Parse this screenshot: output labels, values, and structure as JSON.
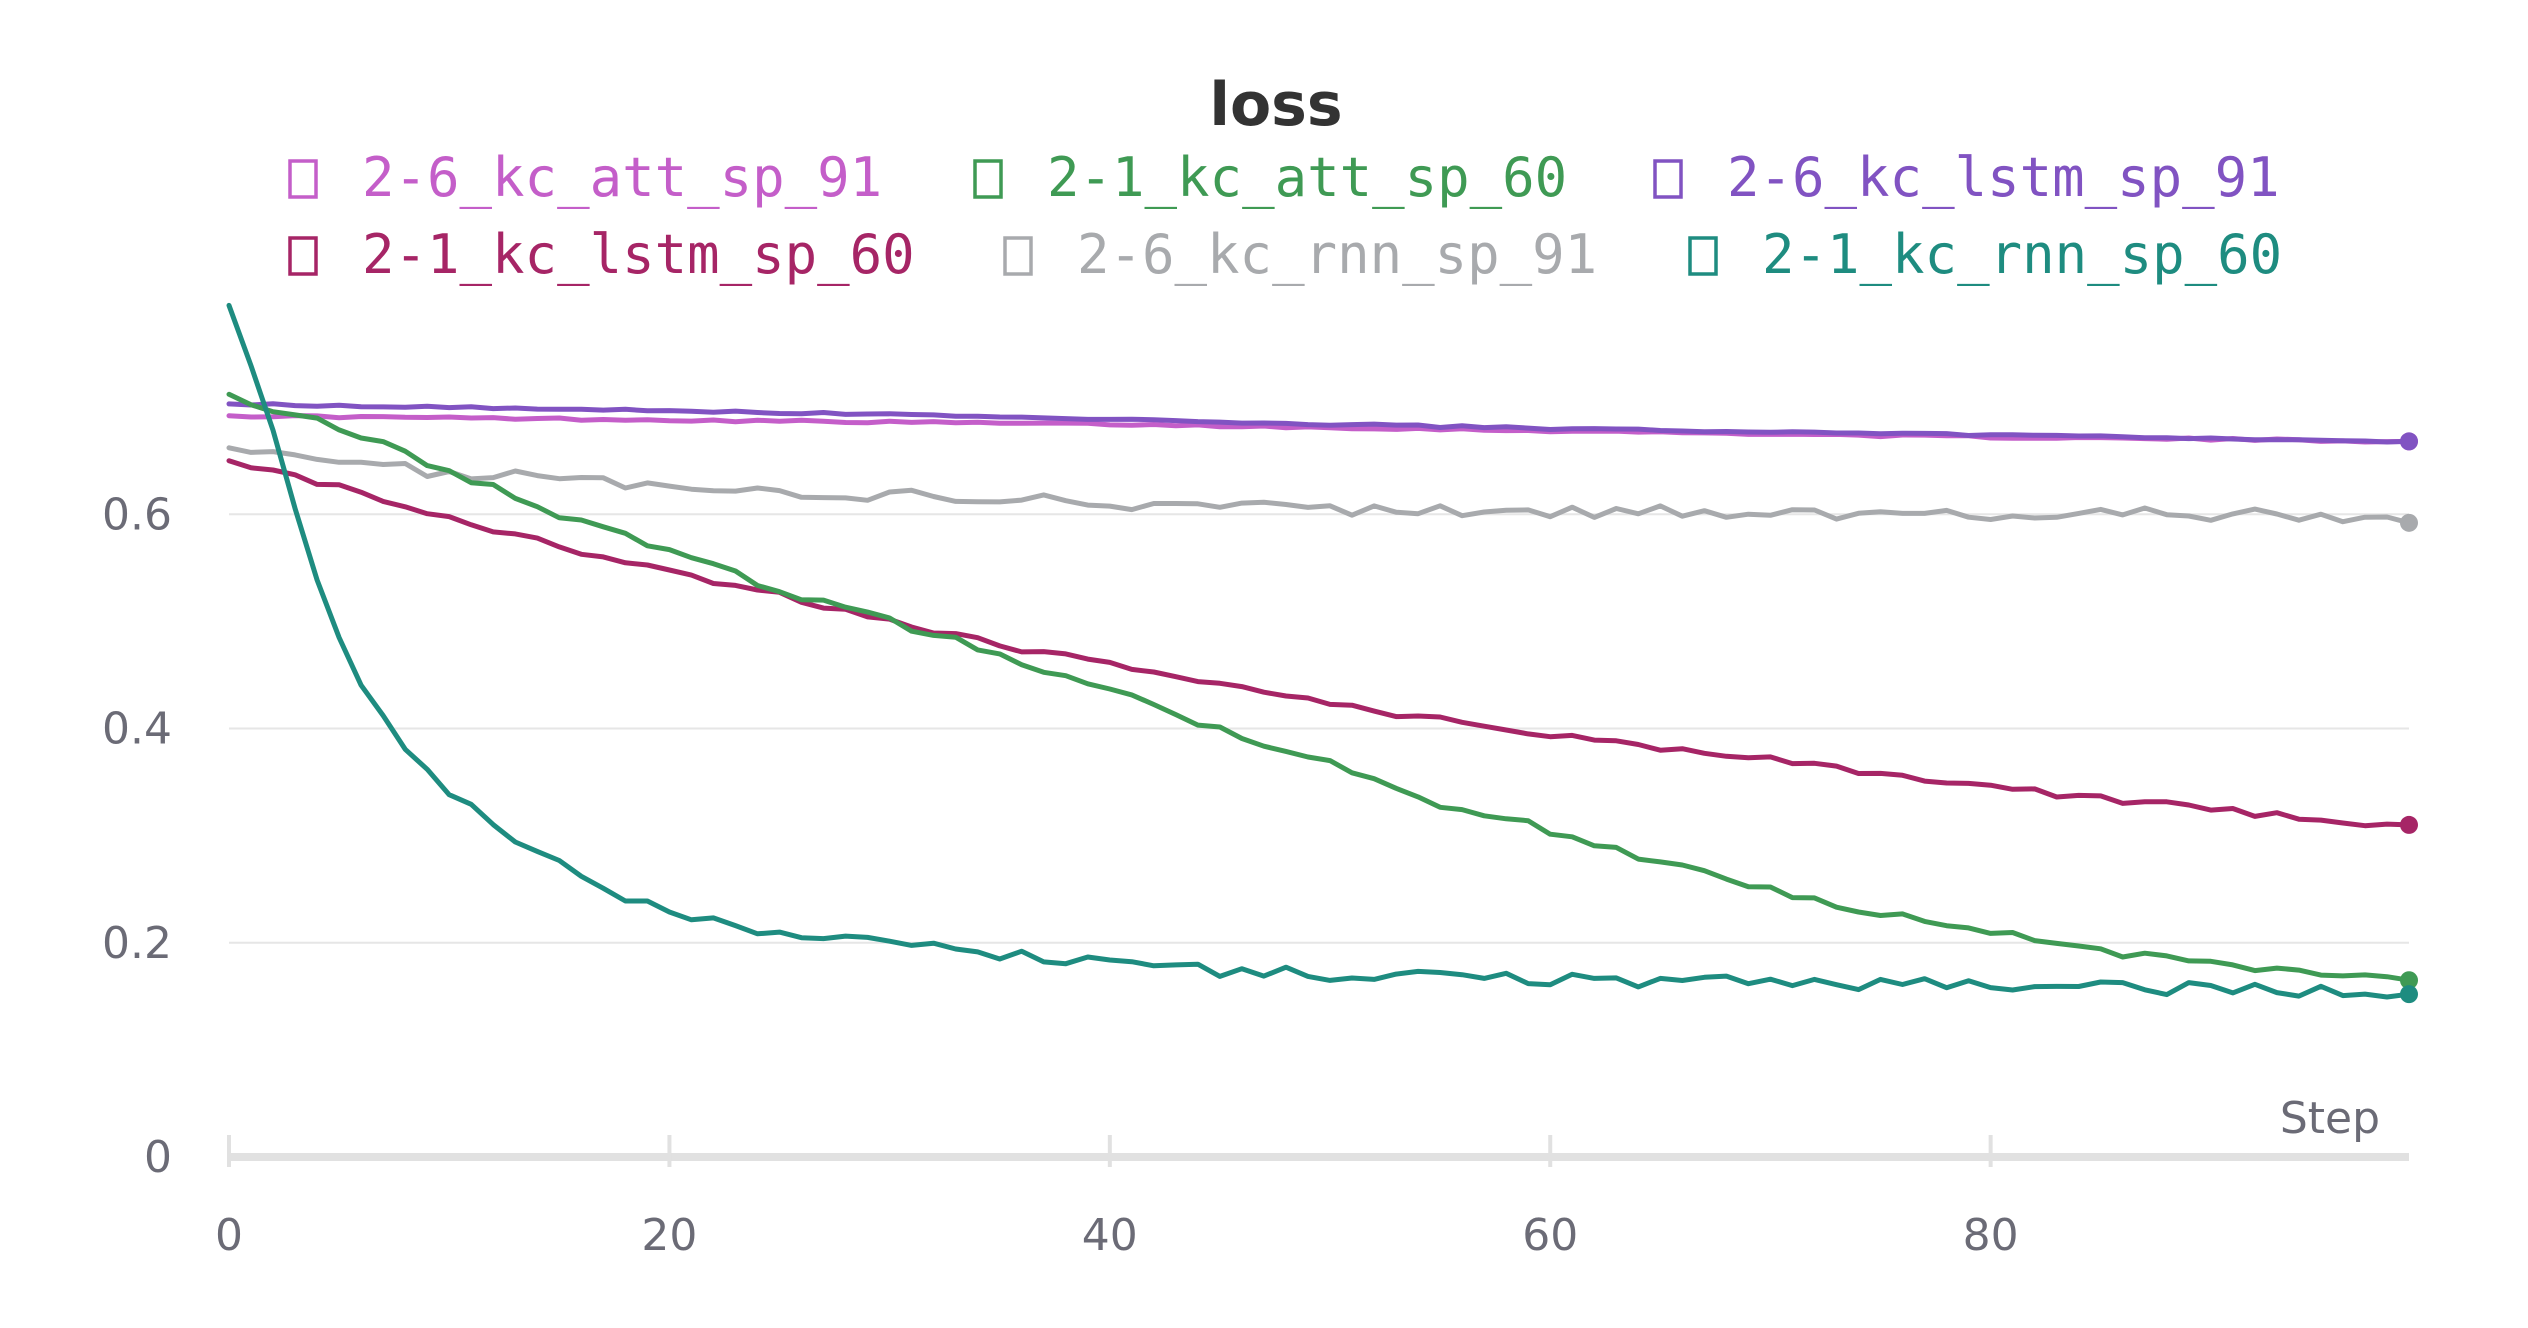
{
  "chart_data": {
    "type": "line",
    "title": "loss",
    "xlabel": "Step",
    "ylabel": "",
    "xlim": [
      0,
      99
    ],
    "ylim": [
      0,
      0.8
    ],
    "x_ticks": [
      0,
      20,
      40,
      60,
      80
    ],
    "y_ticks": [
      0,
      0.2,
      0.4,
      0.6
    ],
    "x_tick_labels": [
      "0",
      "20",
      "40",
      "60",
      "80"
    ],
    "y_tick_labels": [
      "0",
      "0.2",
      "0.4",
      "0.6"
    ],
    "grid": "horizontal",
    "legend_position": "top",
    "legend_marker": "□",
    "series": [
      {
        "name": "2-6_kc_att_sp_91",
        "color": "#c45ec9",
        "keypoints": [
          [
            0,
            0.692
          ],
          [
            10,
            0.69
          ],
          [
            20,
            0.688
          ],
          [
            30,
            0.686
          ],
          [
            40,
            0.684
          ],
          [
            50,
            0.681
          ],
          [
            60,
            0.678
          ],
          [
            70,
            0.675
          ],
          [
            80,
            0.672
          ],
          [
            90,
            0.67
          ],
          [
            99,
            0.668
          ]
        ],
        "noise": 0.001
      },
      {
        "name": "2-1_kc_att_sp_60",
        "color": "#3f9a54",
        "keypoints": [
          [
            0,
            0.712
          ],
          [
            5,
            0.68
          ],
          [
            10,
            0.64
          ],
          [
            15,
            0.6
          ],
          [
            20,
            0.565
          ],
          [
            25,
            0.53
          ],
          [
            30,
            0.5
          ],
          [
            35,
            0.47
          ],
          [
            40,
            0.435
          ],
          [
            45,
            0.4
          ],
          [
            50,
            0.368
          ],
          [
            55,
            0.33
          ],
          [
            60,
            0.305
          ],
          [
            65,
            0.275
          ],
          [
            70,
            0.25
          ],
          [
            75,
            0.228
          ],
          [
            80,
            0.21
          ],
          [
            85,
            0.192
          ],
          [
            90,
            0.18
          ],
          [
            95,
            0.172
          ],
          [
            99,
            0.165
          ]
        ],
        "noise": 0.004
      },
      {
        "name": "2-6_kc_lstm_sp_91",
        "color": "#8153c2",
        "keypoints": [
          [
            0,
            0.703
          ],
          [
            10,
            0.7
          ],
          [
            20,
            0.697
          ],
          [
            30,
            0.693
          ],
          [
            40,
            0.689
          ],
          [
            50,
            0.684
          ],
          [
            60,
            0.68
          ],
          [
            70,
            0.677
          ],
          [
            80,
            0.674
          ],
          [
            90,
            0.671
          ],
          [
            99,
            0.668
          ]
        ],
        "noise": 0.001
      },
      {
        "name": "2-1_kc_lstm_sp_60",
        "color": "#a62566",
        "keypoints": [
          [
            0,
            0.65
          ],
          [
            5,
            0.625
          ],
          [
            10,
            0.595
          ],
          [
            15,
            0.57
          ],
          [
            20,
            0.545
          ],
          [
            25,
            0.525
          ],
          [
            30,
            0.5
          ],
          [
            35,
            0.478
          ],
          [
            40,
            0.46
          ],
          [
            45,
            0.44
          ],
          [
            50,
            0.423
          ],
          [
            55,
            0.408
          ],
          [
            60,
            0.395
          ],
          [
            65,
            0.382
          ],
          [
            70,
            0.372
          ],
          [
            75,
            0.358
          ],
          [
            80,
            0.345
          ],
          [
            85,
            0.335
          ],
          [
            90,
            0.325
          ],
          [
            95,
            0.314
          ],
          [
            99,
            0.31
          ]
        ],
        "noise": 0.003
      },
      {
        "name": "2-6_kc_rnn_sp_91",
        "color": "#a8aaad",
        "keypoints": [
          [
            0,
            0.662
          ],
          [
            5,
            0.652
          ],
          [
            10,
            0.638
          ],
          [
            15,
            0.632
          ],
          [
            20,
            0.625
          ],
          [
            25,
            0.62
          ],
          [
            30,
            0.617
          ],
          [
            35,
            0.614
          ],
          [
            40,
            0.61
          ],
          [
            45,
            0.607
          ],
          [
            50,
            0.605
          ],
          [
            55,
            0.603
          ],
          [
            60,
            0.603
          ],
          [
            65,
            0.603
          ],
          [
            70,
            0.602
          ],
          [
            75,
            0.6
          ],
          [
            80,
            0.6
          ],
          [
            85,
            0.6
          ],
          [
            90,
            0.6
          ],
          [
            95,
            0.597
          ],
          [
            99,
            0.592
          ]
        ],
        "noise": 0.006
      },
      {
        "name": "2-1_kc_rnn_sp_60",
        "color": "#1e8c80",
        "keypoints": [
          [
            0,
            0.795
          ],
          [
            1,
            0.74
          ],
          [
            2,
            0.68
          ],
          [
            3,
            0.61
          ],
          [
            4,
            0.54
          ],
          [
            5,
            0.485
          ],
          [
            6,
            0.445
          ],
          [
            7,
            0.41
          ],
          [
            8,
            0.385
          ],
          [
            9,
            0.36
          ],
          [
            10,
            0.34
          ],
          [
            12,
            0.31
          ],
          [
            14,
            0.285
          ],
          [
            16,
            0.262
          ],
          [
            18,
            0.245
          ],
          [
            20,
            0.232
          ],
          [
            22,
            0.222
          ],
          [
            25,
            0.21
          ],
          [
            30,
            0.198
          ],
          [
            35,
            0.188
          ],
          [
            40,
            0.18
          ],
          [
            45,
            0.174
          ],
          [
            50,
            0.17
          ],
          [
            60,
            0.166
          ],
          [
            70,
            0.163
          ],
          [
            80,
            0.16
          ],
          [
            90,
            0.157
          ],
          [
            99,
            0.152
          ]
        ],
        "noise": 0.006
      }
    ]
  }
}
